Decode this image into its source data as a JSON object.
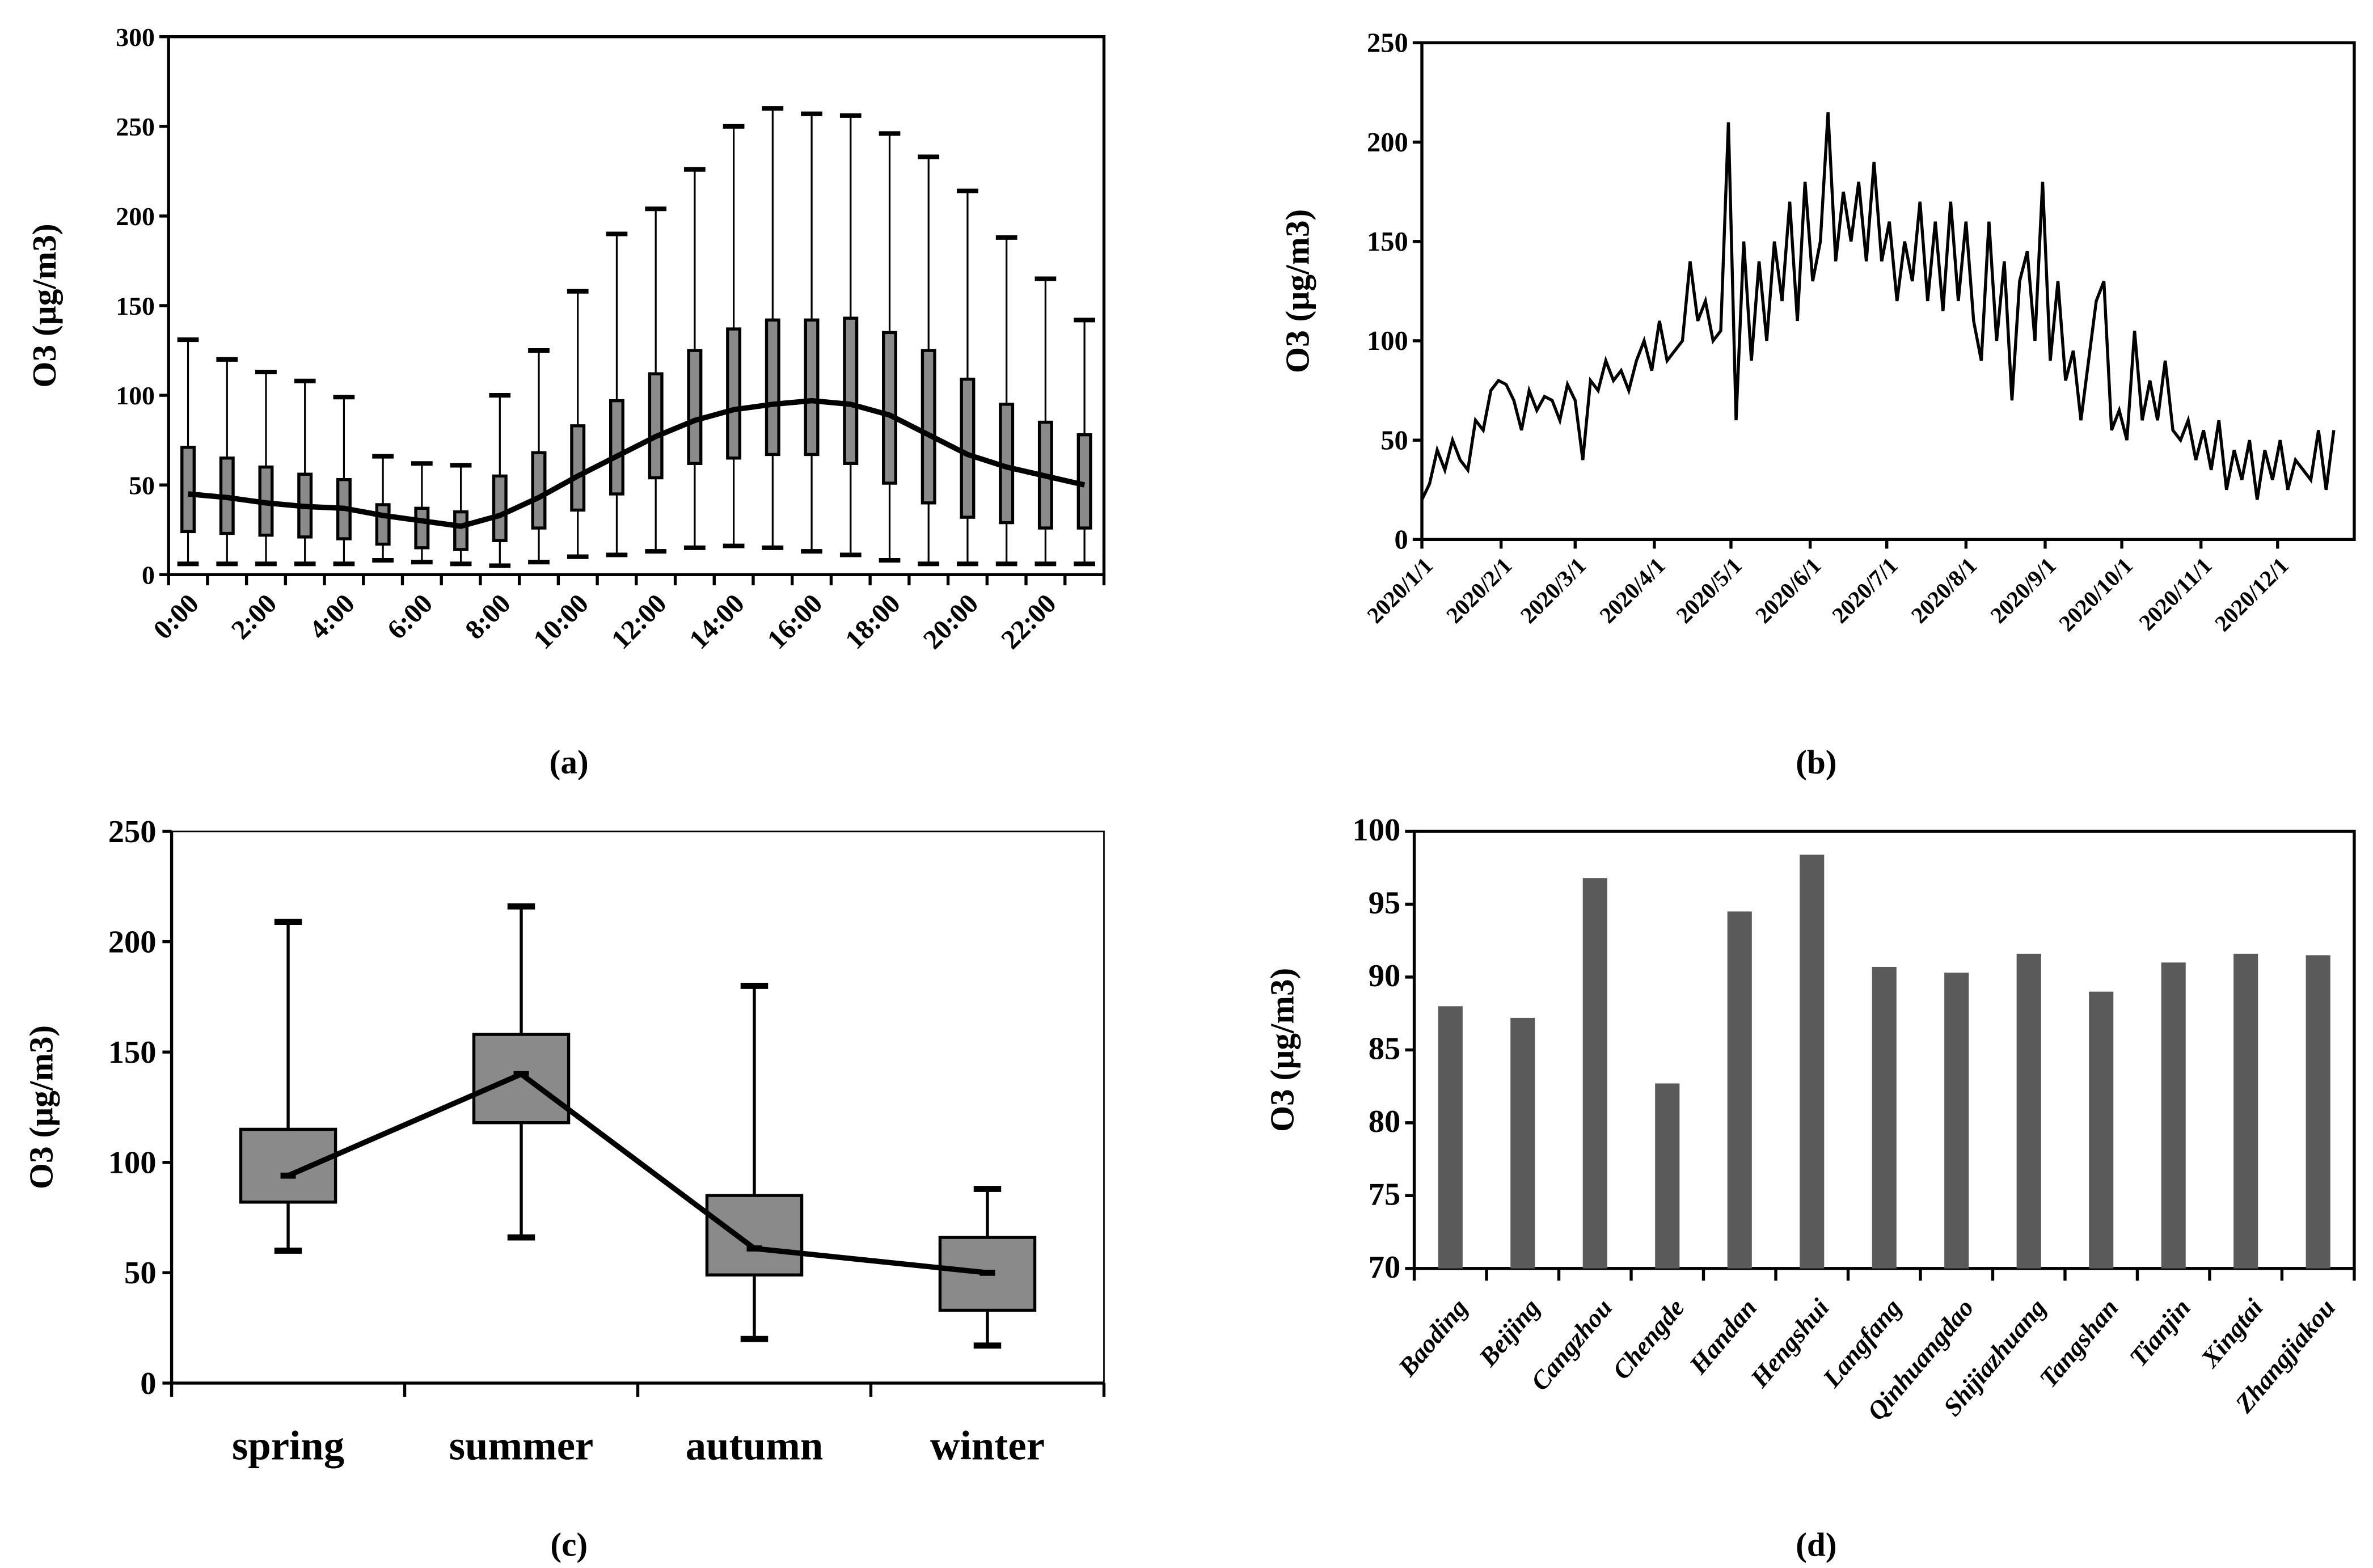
{
  "colors": {
    "box": "#8a8a8a",
    "bar": "#5a5a5a",
    "line": "#000000"
  },
  "chart_data": [
    {
      "panel": "(a)",
      "type": "box",
      "ylabel": "O3 (µg/m3)",
      "ylim": [
        0,
        300
      ],
      "yticks": [
        0,
        50,
        100,
        150,
        200,
        250,
        300
      ],
      "xtick_labels": [
        "0:00",
        "2:00",
        "4:00",
        "6:00",
        "8:00",
        "10:00",
        "12:00",
        "14:00",
        "16:00",
        "18:00",
        "20:00",
        "22:00"
      ],
      "hours": [
        0,
        1,
        2,
        3,
        4,
        5,
        6,
        7,
        8,
        9,
        10,
        11,
        12,
        13,
        14,
        15,
        16,
        17,
        18,
        19,
        20,
        21,
        22,
        23
      ],
      "max": [
        131,
        120,
        113,
        108,
        99,
        66,
        62,
        61,
        100,
        125,
        158,
        190,
        204,
        226,
        250,
        260,
        257,
        256,
        246,
        233,
        214,
        188,
        165,
        142
      ],
      "q3": [
        71,
        65,
        60,
        56,
        53,
        39,
        37,
        35,
        55,
        68,
        83,
        97,
        112,
        125,
        137,
        142,
        142,
        143,
        135,
        125,
        109,
        95,
        85,
        78
      ],
      "mean": [
        45,
        43,
        40,
        38,
        37,
        33,
        30,
        27,
        33,
        43,
        55,
        66,
        77,
        86,
        92,
        95,
        97,
        95,
        89,
        78,
        67,
        60,
        55,
        50
      ],
      "q1": [
        24,
        23,
        22,
        21,
        20,
        17,
        15,
        14,
        19,
        26,
        36,
        45,
        54,
        62,
        65,
        67,
        67,
        62,
        51,
        40,
        32,
        29,
        26,
        26
      ],
      "min": [
        6,
        6,
        6,
        6,
        6,
        8,
        7,
        6,
        5,
        7,
        10,
        11,
        13,
        15,
        16,
        15,
        13,
        11,
        8,
        6,
        6,
        6,
        6,
        6
      ]
    },
    {
      "panel": "(b)",
      "type": "line",
      "ylabel": "O3 (µg/m3)",
      "ylim": [
        0,
        250
      ],
      "yticks": [
        0,
        50,
        100,
        150,
        200,
        250
      ],
      "xtick_labels": [
        "2020/1/1",
        "2020/2/1",
        "2020/3/1",
        "2020/4/1",
        "2020/5/1",
        "2020/6/1",
        "2020/7/1",
        "2020/8/1",
        "2020/9/1",
        "2020/10/1",
        "2020/11/1",
        "2020/12/1"
      ],
      "day_step": 3,
      "values": [
        20,
        28,
        45,
        35,
        50,
        40,
        35,
        60,
        55,
        75,
        80,
        78,
        70,
        55,
        75,
        65,
        72,
        70,
        60,
        78,
        70,
        40,
        80,
        75,
        90,
        80,
        85,
        75,
        90,
        100,
        85,
        110,
        90,
        95,
        100,
        140,
        110,
        120,
        100,
        105,
        210,
        60,
        150,
        90,
        140,
        100,
        150,
        120,
        170,
        110,
        180,
        130,
        150,
        215,
        140,
        175,
        150,
        180,
        140,
        190,
        140,
        160,
        120,
        150,
        130,
        170,
        120,
        160,
        115,
        170,
        120,
        160,
        110,
        90,
        160,
        100,
        140,
        70,
        130,
        145,
        100,
        180,
        90,
        130,
        80,
        95,
        60,
        90,
        120,
        130,
        55,
        65,
        50,
        105,
        60,
        80,
        60,
        90,
        55,
        50,
        60,
        40,
        55,
        35,
        60,
        25,
        45,
        30,
        50,
        20,
        45,
        30,
        50,
        25,
        40,
        35,
        30,
        55,
        25,
        55
      ]
    },
    {
      "panel": "(c)",
      "type": "box",
      "ylabel": "O3 (µg/m3)",
      "ylim": [
        0,
        250
      ],
      "yticks": [
        0,
        50,
        100,
        150,
        200,
        250
      ],
      "categories": [
        "spring",
        "summer",
        "autumn",
        "winter"
      ],
      "min": [
        60,
        66,
        20,
        17
      ],
      "q1": [
        82,
        118,
        49,
        33
      ],
      "mean": [
        94,
        140,
        61,
        50
      ],
      "q3": [
        115,
        158,
        85,
        66
      ],
      "max": [
        209,
        216,
        180,
        88
      ]
    },
    {
      "panel": "(d)",
      "type": "bar",
      "ylabel": "O3 (µg/m3)",
      "ylim": [
        70,
        100
      ],
      "yticks": [
        70,
        75,
        80,
        85,
        90,
        95,
        100
      ],
      "categories": [
        "Baoding",
        "Beijing",
        "Cangzhou",
        "Chengde",
        "Handan",
        "Hengshui",
        "Langfang",
        "Qinhuangdao",
        "Shijiazhuang",
        "Tangshan",
        "Tianjin",
        "Xingtai",
        "Zhangjiakou"
      ],
      "values": [
        88,
        87.2,
        96.8,
        82.7,
        94.5,
        98.4,
        90.7,
        90.3,
        91.6,
        89,
        91,
        91.6,
        91.5
      ]
    }
  ]
}
